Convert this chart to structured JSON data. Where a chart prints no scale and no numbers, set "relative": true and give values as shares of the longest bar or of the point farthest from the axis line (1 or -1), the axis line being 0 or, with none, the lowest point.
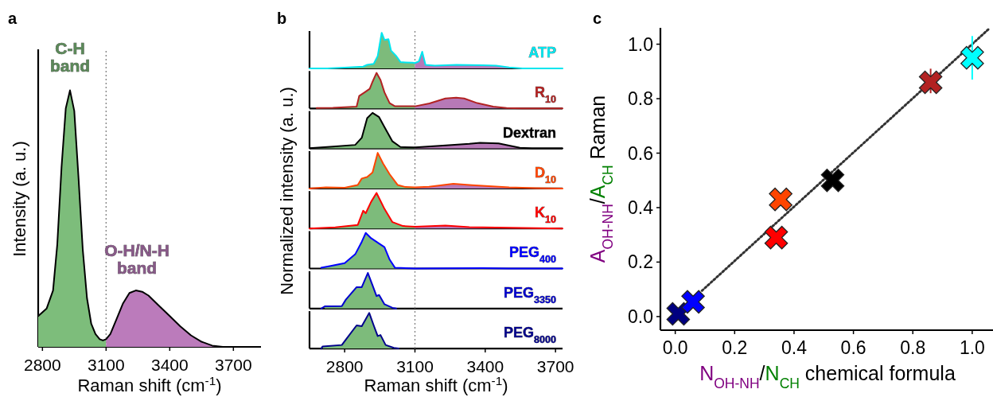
{
  "chart_data": [
    {
      "type": "area",
      "title": "a",
      "xlabel": "Raman shift (cm$^{-1}$)",
      "ylabel": "Intensity (a. u.)",
      "relative": true,
      "xlim": [
        2780,
        3830
      ],
      "xticks": [
        2800,
        3100,
        3400,
        3700
      ],
      "series": [
        {
          "color": "#7dbd7b",
          "x": [
            2780,
            2820,
            2850,
            2870,
            2890,
            2910,
            2930,
            2950,
            2970,
            2990,
            3010,
            3030,
            3050,
            3070,
            3085,
            3100
          ],
          "values": [
            0.12,
            0.15,
            0.22,
            0.4,
            0.7,
            0.93,
            1,
            0.92,
            0.66,
            0.38,
            0.19,
            0.09,
            0.05,
            0.03,
            0.025,
            0.03
          ]
        },
        {
          "color": "#bb7bbb",
          "x": [
            3100,
            3120,
            3150,
            3180,
            3210,
            3240,
            3270,
            3300,
            3350,
            3400,
            3450,
            3500,
            3550,
            3600,
            3650
          ],
          "values": [
            0.03,
            0.05,
            0.11,
            0.17,
            0.21,
            0.22,
            0.215,
            0.2,
            0.16,
            0.12,
            0.08,
            0.045,
            0.02,
            0.005,
            0
          ]
        },
        {
          "type": "line",
          "color": "#000000",
          "x": [
            2780,
            2820,
            2850,
            2870,
            2890,
            2910,
            2930,
            2950,
            2970,
            2990,
            3010,
            3030,
            3050,
            3070,
            3085,
            3100,
            3120,
            3150,
            3180,
            3210,
            3240,
            3270,
            3300,
            3350,
            3400,
            3450,
            3500,
            3550,
            3600,
            3650
          ],
          "values": [
            0.12,
            0.15,
            0.22,
            0.4,
            0.7,
            0.93,
            1,
            0.92,
            0.66,
            0.38,
            0.19,
            0.09,
            0.05,
            0.03,
            0.025,
            0.03,
            0.05,
            0.11,
            0.17,
            0.21,
            0.22,
            0.215,
            0.2,
            0.16,
            0.12,
            0.08,
            0.045,
            0.02,
            0.005,
            0
          ]
        }
      ],
      "ref_lines": [
        {
          "axis": "x",
          "value": 3100,
          "color": "#808080",
          "line_style": "dotted"
        }
      ],
      "annotations": [
        "C-H band",
        "O-H/N-H band"
      ]
    },
    {
      "type": "area",
      "title": "b",
      "ylabel": "Normalized intensity (a. u.)",
      "relative": true,
      "xlim": [
        2650,
        3730
      ],
      "tick_labels": false,
      "series": [
        {
          "color": "#7dbb7b",
          "x": [
            2650,
            2726,
            2800,
            2879,
            2896,
            2924,
            2941,
            2958,
            2970,
            2987,
            2998,
            3021,
            3038,
            3060,
            3089,
            3100
          ],
          "values": [
            0,
            0,
            0.02,
            0.05,
            0.1,
            0.13,
            0.35,
            1,
            0.8,
            0.82,
            0.5,
            0.34,
            0.18,
            0.17,
            0.16,
            0.15
          ]
        },
        {
          "color": "#b779b7",
          "x": [
            3100,
            3117,
            3131,
            3145,
            3185,
            3276,
            3389,
            3446,
            3502,
            3559,
            3650,
            3730
          ],
          "values": [
            0.15,
            0.2,
            0.47,
            0.1,
            0.08,
            0.1,
            0.09,
            0.08,
            0.03,
            0,
            0,
            0
          ]
        },
        {
          "type": "line",
          "name": "ATP",
          "color": "#00e5ee",
          "x": [
            2650,
            2726,
            2800,
            2879,
            2896,
            2924,
            2941,
            2958,
            2970,
            2987,
            2998,
            3021,
            3038,
            3060,
            3089,
            3100,
            3117,
            3131,
            3145,
            3185,
            3276,
            3389,
            3446,
            3502,
            3559,
            3650,
            3730
          ],
          "values": [
            0,
            0,
            0.02,
            0.05,
            0.1,
            0.13,
            0.35,
            1,
            0.8,
            0.82,
            0.5,
            0.34,
            0.18,
            0.17,
            0.16,
            0.15,
            0.2,
            0.47,
            0.1,
            0.08,
            0.1,
            0.09,
            0.08,
            0.03,
            0,
            0,
            0
          ]
        }
      ],
      "ref_lines": [
        {
          "axis": "x",
          "value": 3100,
          "color": "#808080",
          "line_style": "dotted"
        }
      ]
    },
    {
      "type": "area",
      "relative": true,
      "xlim": [
        2650,
        3730
      ],
      "tick_labels": false,
      "series": [
        {
          "color": "#7dbb7b",
          "x": [
            2680,
            2750,
            2851,
            2862,
            2885,
            2907,
            2919,
            2936,
            2953,
            2970,
            2992,
            3015,
            3100
          ],
          "values": [
            0.01,
            0.02,
            0.05,
            0.35,
            0.45,
            0.55,
            0.75,
            1,
            0.8,
            0.45,
            0.15,
            0.06,
            0.06
          ]
        },
        {
          "color": "#b779b7",
          "x": [
            3100,
            3162,
            3230,
            3276,
            3310,
            3366,
            3434,
            3491,
            3559,
            3650,
            3730
          ],
          "values": [
            0.06,
            0.14,
            0.28,
            0.3,
            0.28,
            0.15,
            0.05,
            0.01,
            0,
            0,
            0
          ]
        },
        {
          "type": "line",
          "name": "R$_{10}$",
          "color": "#b22222",
          "x": [
            2680,
            2750,
            2851,
            2862,
            2885,
            2907,
            2919,
            2936,
            2953,
            2970,
            2992,
            3015,
            3100,
            3162,
            3230,
            3276,
            3310,
            3366,
            3434,
            3491,
            3559,
            3650,
            3730
          ],
          "values": [
            0.01,
            0.02,
            0.05,
            0.35,
            0.45,
            0.55,
            0.75,
            1,
            0.8,
            0.45,
            0.15,
            0.06,
            0.06,
            0.14,
            0.28,
            0.3,
            0.28,
            0.15,
            0.05,
            0.01,
            0,
            0,
            0
          ]
        }
      ],
      "ref_lines": [
        {
          "axis": "x",
          "value": 3100,
          "color": "#808080",
          "line_style": "dotted"
        }
      ]
    },
    {
      "type": "area",
      "relative": true,
      "xlim": [
        2650,
        3730
      ],
      "tick_labels": false,
      "series": [
        {
          "color": "#7dbb7b",
          "x": [
            2650,
            2750,
            2845,
            2873,
            2896,
            2919,
            2947,
            2970,
            3004,
            3038,
            3100
          ],
          "values": [
            0.01,
            0.05,
            0.1,
            0.3,
            0.85,
            1,
            0.88,
            0.6,
            0.2,
            0.04,
            0.03
          ]
        },
        {
          "color": "#b779b7",
          "x": [
            3100,
            3219,
            3332,
            3378,
            3457,
            3548,
            3600,
            3730
          ],
          "values": [
            0.03,
            0.08,
            0.13,
            0.16,
            0.14,
            0.02,
            0,
            0
          ]
        },
        {
          "type": "line",
          "name": "Dextran",
          "color": "#000000",
          "x": [
            2650,
            2750,
            2845,
            2873,
            2896,
            2919,
            2947,
            2970,
            3004,
            3038,
            3100,
            3219,
            3332,
            3378,
            3457,
            3548,
            3600,
            3730
          ],
          "values": [
            0.01,
            0.05,
            0.1,
            0.3,
            0.85,
            1,
            0.88,
            0.6,
            0.2,
            0.04,
            0.03,
            0.08,
            0.13,
            0.16,
            0.14,
            0.02,
            0,
            0
          ]
        }
      ],
      "ref_lines": [
        {
          "axis": "x",
          "value": 3100,
          "color": "#808080",
          "line_style": "dotted"
        }
      ]
    },
    {
      "type": "area",
      "relative": true,
      "xlim": [
        2650,
        3730
      ],
      "tick_labels": false,
      "series": [
        {
          "color": "#7dbb7b",
          "x": [
            2650,
            2720,
            2800,
            2856,
            2873,
            2896,
            2919,
            2941,
            2964,
            2992,
            3026,
            3060,
            3100
          ],
          "values": [
            0,
            0.03,
            0.02,
            0.1,
            0.28,
            0.32,
            0.45,
            1,
            0.7,
            0.4,
            0.1,
            0.04,
            0.03
          ]
        },
        {
          "color": "#b779b7",
          "x": [
            3100,
            3160,
            3264,
            3344,
            3502,
            3615,
            3730
          ],
          "values": [
            0.03,
            0.05,
            0.13,
            0.09,
            0.03,
            0.01,
            0
          ]
        },
        {
          "type": "line",
          "name": "D$_{10}$",
          "color": "#ff4500",
          "x": [
            2650,
            2720,
            2800,
            2856,
            2873,
            2896,
            2919,
            2941,
            2964,
            2992,
            3026,
            3060,
            3100,
            3160,
            3264,
            3344,
            3502,
            3615,
            3730
          ],
          "values": [
            0,
            0.03,
            0.02,
            0.1,
            0.28,
            0.32,
            0.45,
            1,
            0.7,
            0.4,
            0.1,
            0.04,
            0.03,
            0.05,
            0.13,
            0.09,
            0.03,
            0.01,
            0
          ]
        }
      ],
      "ref_lines": [
        {
          "axis": "x",
          "value": 3100,
          "color": "#808080",
          "line_style": "dotted"
        }
      ]
    },
    {
      "type": "area",
      "relative": true,
      "xlim": [
        2650,
        3730
      ],
      "tick_labels": false,
      "series": [
        {
          "color": "#7dbb7b",
          "x": [
            2650,
            2760,
            2856,
            2879,
            2890,
            2913,
            2936,
            2970,
            3004,
            3049,
            3100
          ],
          "values": [
            0,
            0.03,
            0.1,
            0.5,
            0.43,
            0.75,
            1,
            0.55,
            0.18,
            0.07,
            0.05
          ]
        },
        {
          "color": "#b779b7",
          "x": [
            3100,
            3230,
            3332,
            3502,
            3730
          ],
          "values": [
            0.05,
            0.08,
            0.04,
            0.02,
            0
          ]
        },
        {
          "type": "line",
          "name": "K$_{10}$",
          "color": "#ff0000",
          "x": [
            2650,
            2760,
            2856,
            2879,
            2890,
            2913,
            2936,
            2970,
            3004,
            3049,
            3100,
            3230,
            3332,
            3502,
            3730
          ],
          "values": [
            0,
            0.03,
            0.1,
            0.5,
            0.43,
            0.75,
            1,
            0.55,
            0.18,
            0.07,
            0.05,
            0.08,
            0.04,
            0.02,
            0
          ]
        }
      ],
      "ref_lines": [
        {
          "axis": "x",
          "value": 3100,
          "color": "#808080",
          "line_style": "dotted"
        }
      ]
    },
    {
      "type": "area",
      "relative": true,
      "xlim": [
        2650,
        3730
      ],
      "tick_labels": false,
      "series": [
        {
          "color": "#7dbb7b",
          "x": [
            2700,
            2732,
            2800,
            2845,
            2873,
            2890,
            2913,
            2947,
            2970,
            2992,
            3015,
            3100
          ],
          "values": [
            0.02,
            0.06,
            0.15,
            0.4,
            0.75,
            1,
            0.85,
            0.7,
            0.6,
            0.25,
            0.02,
            0
          ]
        },
        {
          "type": "line",
          "name": "PEG$_{400}$",
          "color": "#0000ff",
          "x": [
            2700,
            2732,
            2800,
            2845,
            2873,
            2890,
            2913,
            2947,
            2970,
            2992,
            3015,
            3100,
            3389,
            3500,
            3730
          ],
          "values": [
            0.02,
            0.06,
            0.15,
            0.4,
            0.75,
            1,
            0.85,
            0.7,
            0.6,
            0.25,
            0.02,
            0,
            0.01,
            0,
            0
          ]
        }
      ],
      "ref_lines": [
        {
          "axis": "x",
          "value": 3100,
          "color": "#808080",
          "line_style": "dotted"
        }
      ]
    },
    {
      "type": "area",
      "relative": true,
      "xlim": [
        2650,
        3730
      ],
      "tick_labels": false,
      "series": [
        {
          "color": "#7dbb7b",
          "x": [
            2715,
            2788,
            2805,
            2851,
            2873,
            2899,
            2919,
            2936,
            2947,
            2970,
            3004
          ],
          "values": [
            0.06,
            0.07,
            0.25,
            0.6,
            0.6,
            1,
            0.65,
            0.35,
            0.38,
            0.12,
            0.02
          ]
        },
        {
          "type": "line",
          "name": "PEG$_{3350}$",
          "color": "#0000cd",
          "x": [
            2700,
            2715,
            2788,
            2805,
            2851,
            2873,
            2899,
            2919,
            2936,
            2947,
            2970,
            3004,
            3020
          ],
          "values": [
            0,
            0.06,
            0.07,
            0.25,
            0.6,
            0.6,
            1,
            0.65,
            0.35,
            0.38,
            0.12,
            0.02,
            0
          ]
        }
      ],
      "ref_lines": [
        {
          "axis": "x",
          "value": 3100,
          "color": "#808080",
          "line_style": "dotted"
        }
      ]
    },
    {
      "type": "area",
      "xlabel": "Raman shift (cm$^{-1}$)",
      "relative": true,
      "xlim": [
        2650,
        3730
      ],
      "xticks": [
        2800,
        3100,
        3400,
        3700
      ],
      "tick_labels": "x",
      "series": [
        {
          "color": "#7dbb7b",
          "x": [
            2706,
            2788,
            2805,
            2851,
            2873,
            2905,
            2924,
            2941,
            2953,
            2975,
            3010
          ],
          "values": [
            0.06,
            0.1,
            0.25,
            0.65,
            0.63,
            1,
            0.65,
            0.35,
            0.38,
            0.1,
            0.02
          ]
        },
        {
          "type": "line",
          "name": "PEG$_{8000}$",
          "color": "#00008b",
          "x": [
            2700,
            2706,
            2788,
            2805,
            2851,
            2873,
            2905,
            2924,
            2941,
            2953,
            2975,
            3010,
            3030
          ],
          "values": [
            0,
            0.06,
            0.1,
            0.25,
            0.65,
            0.63,
            1,
            0.65,
            0.35,
            0.38,
            0.1,
            0.02,
            0
          ]
        }
      ],
      "ref_lines": [
        {
          "axis": "x",
          "value": 3100,
          "color": "#808080",
          "line_style": "dotted"
        }
      ]
    },
    {
      "type": "scatter",
      "title": "c",
      "xlabel": "N$_{OH-NH}$/N$_{CH}$ chemical formula",
      "ylabel": "A$_{OH-NH}$/A$_{CH}$ Raman",
      "xlim": [
        -0.05,
        1.07
      ],
      "ylim": [
        -0.05,
        1.06
      ],
      "xticks": [
        {
          "value": 0,
          "label": "0.0"
        },
        0.2,
        0.4,
        0.6,
        0.8,
        {
          "value": 1,
          "label": "1.0"
        }
      ],
      "yticks": [
        {
          "value": 0,
          "label": "0.0"
        },
        0.2,
        0.4,
        0.6,
        0.8,
        {
          "value": 1,
          "label": "1.0"
        }
      ],
      "series": [
        {
          "type": "line",
          "color": "#333333",
          "line_style": "dotted",
          "x": [
            0.09,
            1.055
          ],
          "values": [
            0.095,
            1.055
          ]
        },
        {
          "marker": "cross",
          "x": [
            0.01,
            0.06,
            0.34,
            0.355,
            0.53,
            0.86,
            1.0
          ],
          "values": [
            0.01,
            0.054,
            0.29,
            0.43,
            0.5,
            0.86,
            0.95
          ],
          "colors": [
            "#000080",
            "#0000ff",
            "#ff0000",
            "#ff4500",
            "#000000",
            "#b22222",
            "#00ffff"
          ],
          "errors": [
            null,
            null,
            null,
            null,
            null,
            [
              0.82,
              0.91
            ],
            [
              0.87,
              1.03
            ]
          ]
        }
      ]
    }
  ]
}
